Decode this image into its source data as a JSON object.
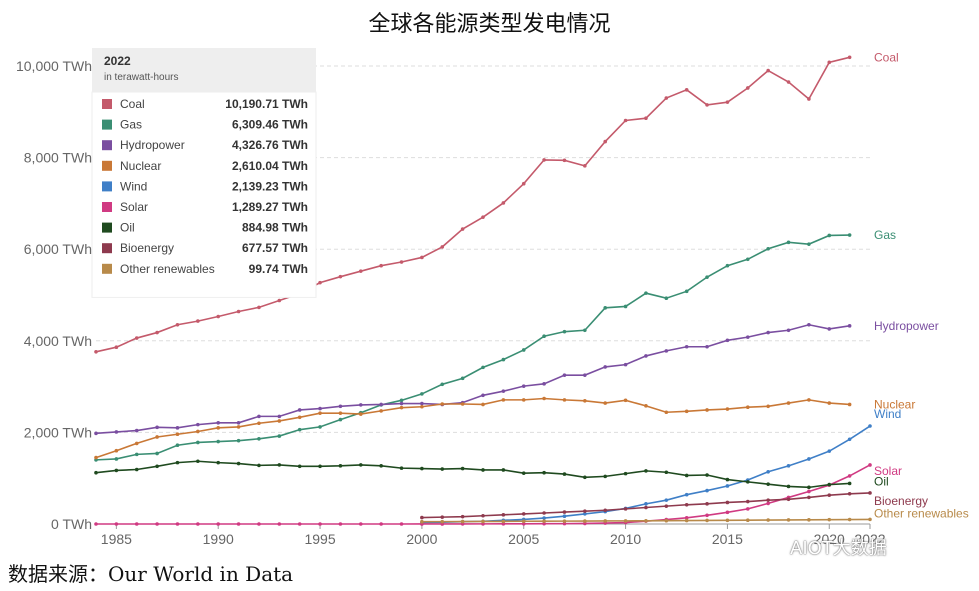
{
  "title": "全球各能源类型发电情况",
  "source": "数据来源：Our World in Data",
  "watermark": "AIOT大数据",
  "chart_data": {
    "type": "line",
    "ylabel": "",
    "xlabel": "",
    "xlim": [
      1984,
      2022
    ],
    "ylim": [
      0,
      10000
    ],
    "y_ticks": [
      "0 TWh",
      "2,000 TWh",
      "4,000 TWh",
      "6,000 TWh",
      "8,000 TWh",
      "10,000 TWh"
    ],
    "y_tick_values": [
      0,
      2000,
      4000,
      6000,
      8000,
      10000
    ],
    "x_ticks": [
      "1985",
      "1990",
      "1995",
      "2000",
      "2005",
      "2010",
      "2015",
      "2020",
      "2022"
    ],
    "x_tick_values": [
      1985,
      1990,
      1995,
      2000,
      2005,
      2010,
      2015,
      2020,
      2022
    ],
    "grid": "horizontal dashed",
    "legend": {
      "title": "2022",
      "subtitle": "in terawatt-hours",
      "placement": "top-left",
      "entries": [
        {
          "name": "Coal",
          "value": "10,190.71 TWh"
        },
        {
          "name": "Gas",
          "value": "6,309.46 TWh"
        },
        {
          "name": "Hydropower",
          "value": "4,326.76 TWh"
        },
        {
          "name": "Nuclear",
          "value": "2,610.04 TWh"
        },
        {
          "name": "Wind",
          "value": "2,139.23 TWh"
        },
        {
          "name": "Solar",
          "value": "1,289.27 TWh"
        },
        {
          "name": "Oil",
          "value": "884.98 TWh"
        },
        {
          "name": "Bioenergy",
          "value": "677.57 TWh"
        },
        {
          "name": "Other renewables",
          "value": "99.74 TWh"
        }
      ]
    },
    "series": [
      {
        "name": "Coal",
        "color": "#c45a6b",
        "start": 1984,
        "values": [
          3760,
          3860,
          4060,
          4180,
          4350,
          4430,
          4530,
          4640,
          4730,
          4880,
          5030,
          5270,
          5400,
          5520,
          5640,
          5720,
          5820,
          6050,
          6440,
          6700,
          7010,
          7430,
          7950,
          7940,
          7820,
          8350,
          8810,
          8860,
          9300,
          9480,
          9150,
          9210,
          9520,
          9900,
          9650,
          9280,
          10080,
          10190
        ]
      },
      {
        "name": "Gas",
        "color": "#3a8e73",
        "start": 1984,
        "values": [
          1400,
          1420,
          1520,
          1540,
          1720,
          1780,
          1800,
          1820,
          1860,
          1920,
          2060,
          2120,
          2280,
          2430,
          2600,
          2700,
          2840,
          3050,
          3180,
          3420,
          3590,
          3800,
          4100,
          4200,
          4230,
          4720,
          4750,
          5040,
          4930,
          5080,
          5390,
          5640,
          5780,
          6010,
          6150,
          6110,
          6300,
          6309
        ]
      },
      {
        "name": "Hydropower",
        "color": "#7a4ea0",
        "start": 1984,
        "values": [
          1980,
          2010,
          2040,
          2110,
          2100,
          2170,
          2210,
          2210,
          2350,
          2350,
          2490,
          2520,
          2570,
          2600,
          2610,
          2630,
          2630,
          2610,
          2650,
          2810,
          2900,
          3010,
          3060,
          3250,
          3250,
          3430,
          3480,
          3670,
          3780,
          3870,
          3870,
          4010,
          4080,
          4180,
          4230,
          4350,
          4260,
          4327
        ]
      },
      {
        "name": "Nuclear",
        "color": "#c97836",
        "start": 1984,
        "values": [
          1450,
          1600,
          1760,
          1900,
          1960,
          2020,
          2100,
          2120,
          2200,
          2250,
          2330,
          2420,
          2420,
          2400,
          2470,
          2540,
          2560,
          2620,
          2620,
          2610,
          2710,
          2710,
          2740,
          2710,
          2690,
          2640,
          2700,
          2580,
          2440,
          2460,
          2490,
          2510,
          2550,
          2570,
          2640,
          2710,
          2640,
          2610
        ]
      },
      {
        "name": "Wind",
        "color": "#3f7fc7",
        "start": 2000,
        "values": [
          30,
          40,
          50,
          60,
          80,
          100,
          130,
          170,
          220,
          270,
          340,
          440,
          520,
          640,
          730,
          830,
          960,
          1140,
          1270,
          1420,
          1590,
          1850,
          2139
        ]
      },
      {
        "name": "Solar",
        "color": "#d03a82",
        "start": 1984,
        "values": [
          0,
          0,
          0,
          0,
          0,
          0,
          0,
          0,
          0,
          0,
          0,
          0,
          0,
          0,
          0,
          0,
          1,
          1,
          2,
          3,
          4,
          5,
          6,
          8,
          12,
          20,
          32,
          62,
          97,
          135,
          190,
          255,
          330,
          450,
          580,
          710,
          850,
          1050,
          1289
        ]
      },
      {
        "name": "Oil",
        "color": "#1f4a1f",
        "start": 1984,
        "values": [
          1120,
          1170,
          1190,
          1260,
          1340,
          1370,
          1340,
          1320,
          1280,
          1290,
          1260,
          1260,
          1270,
          1290,
          1270,
          1220,
          1210,
          1200,
          1210,
          1180,
          1180,
          1110,
          1120,
          1090,
          1020,
          1040,
          1100,
          1160,
          1130,
          1060,
          1070,
          970,
          920,
          870,
          820,
          800,
          860,
          885
        ]
      },
      {
        "name": "Bioenergy",
        "color": "#8e3a4e",
        "start": 2000,
        "values": [
          140,
          150,
          160,
          180,
          200,
          220,
          240,
          260,
          280,
          300,
          330,
          360,
          390,
          420,
          440,
          470,
          490,
          520,
          540,
          580,
          630,
          660,
          678
        ]
      },
      {
        "name": "Other renewables",
        "color": "#b88a4a",
        "start": 2000,
        "values": [
          50,
          52,
          54,
          55,
          57,
          60,
          62,
          63,
          64,
          66,
          68,
          70,
          72,
          75,
          78,
          80,
          83,
          86,
          89,
          92,
          95,
          97,
          100
        ]
      }
    ]
  }
}
